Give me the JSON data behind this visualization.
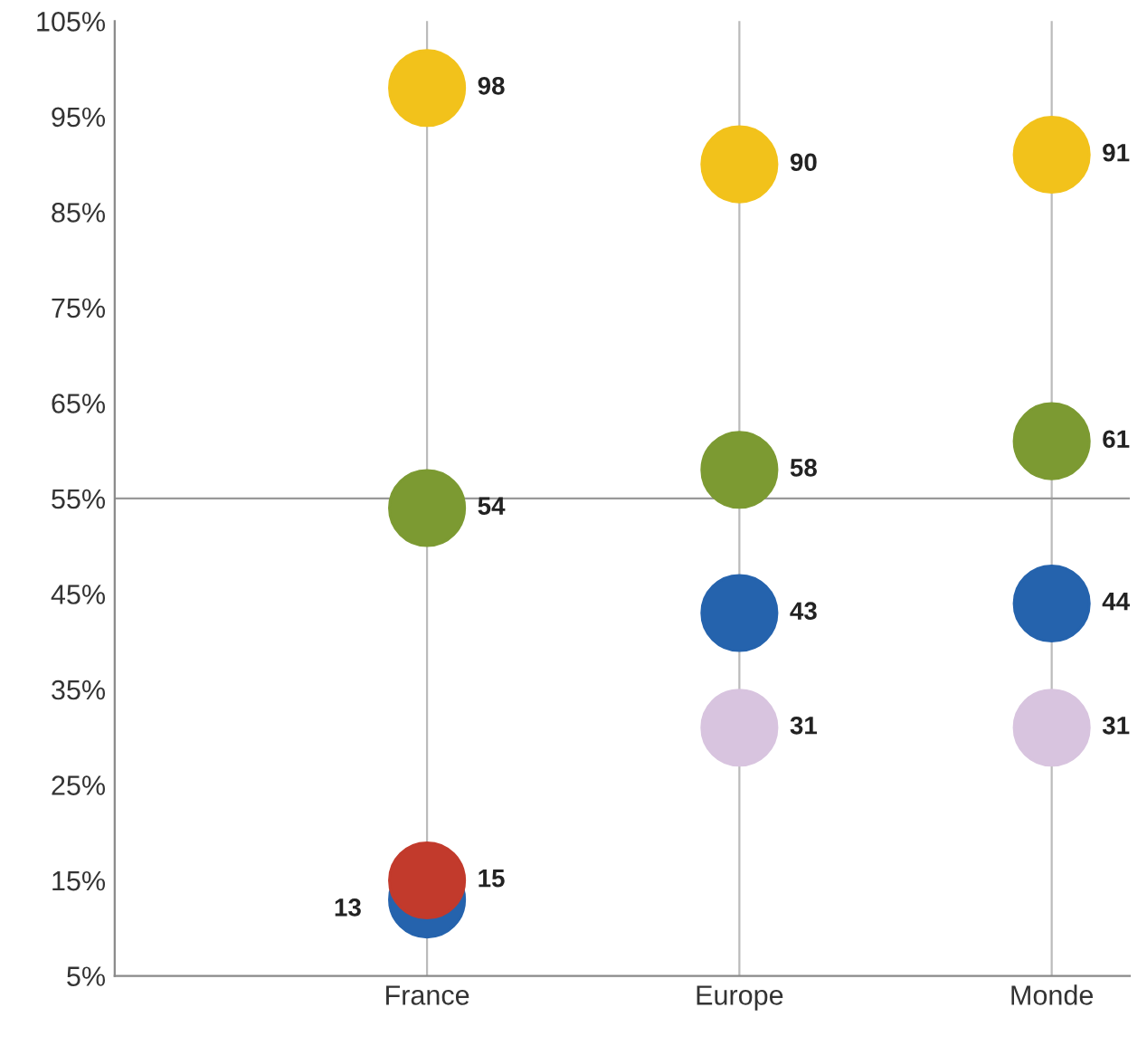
{
  "chart_data": {
    "type": "scatter",
    "categories": [
      "France",
      "Europe",
      "Monde"
    ],
    "series": [
      {
        "color": "#f2c21b",
        "values": [
          98,
          90,
          91
        ]
      },
      {
        "color": "#7c9a32",
        "values": [
          54,
          58,
          61
        ]
      },
      {
        "color": "#2563ad",
        "values": [
          13,
          43,
          44
        ]
      },
      {
        "color": "#d8c4df",
        "values": [
          null,
          31,
          31
        ]
      },
      {
        "color": "#c23a2c",
        "values": [
          15,
          null,
          null
        ]
      }
    ],
    "ylim": [
      5,
      105
    ],
    "yticks": [
      {
        "value": 5,
        "label": "5%"
      },
      {
        "value": 15,
        "label": "15%"
      },
      {
        "value": 25,
        "label": "25%"
      },
      {
        "value": 35,
        "label": "35%"
      },
      {
        "value": 45,
        "label": "45%"
      },
      {
        "value": 55,
        "label": "55%"
      },
      {
        "value": 65,
        "label": "65%"
      },
      {
        "value": 75,
        "label": "75%"
      },
      {
        "value": 85,
        "label": "85%"
      },
      {
        "value": 95,
        "label": "95%"
      },
      {
        "value": 105,
        "label": "105%"
      }
    ],
    "ref_lines": [
      {
        "axis": "y",
        "value": 55,
        "color": "#999999"
      }
    ],
    "grid": "x",
    "marker": "circle",
    "data_labels": true,
    "legend": false
  }
}
